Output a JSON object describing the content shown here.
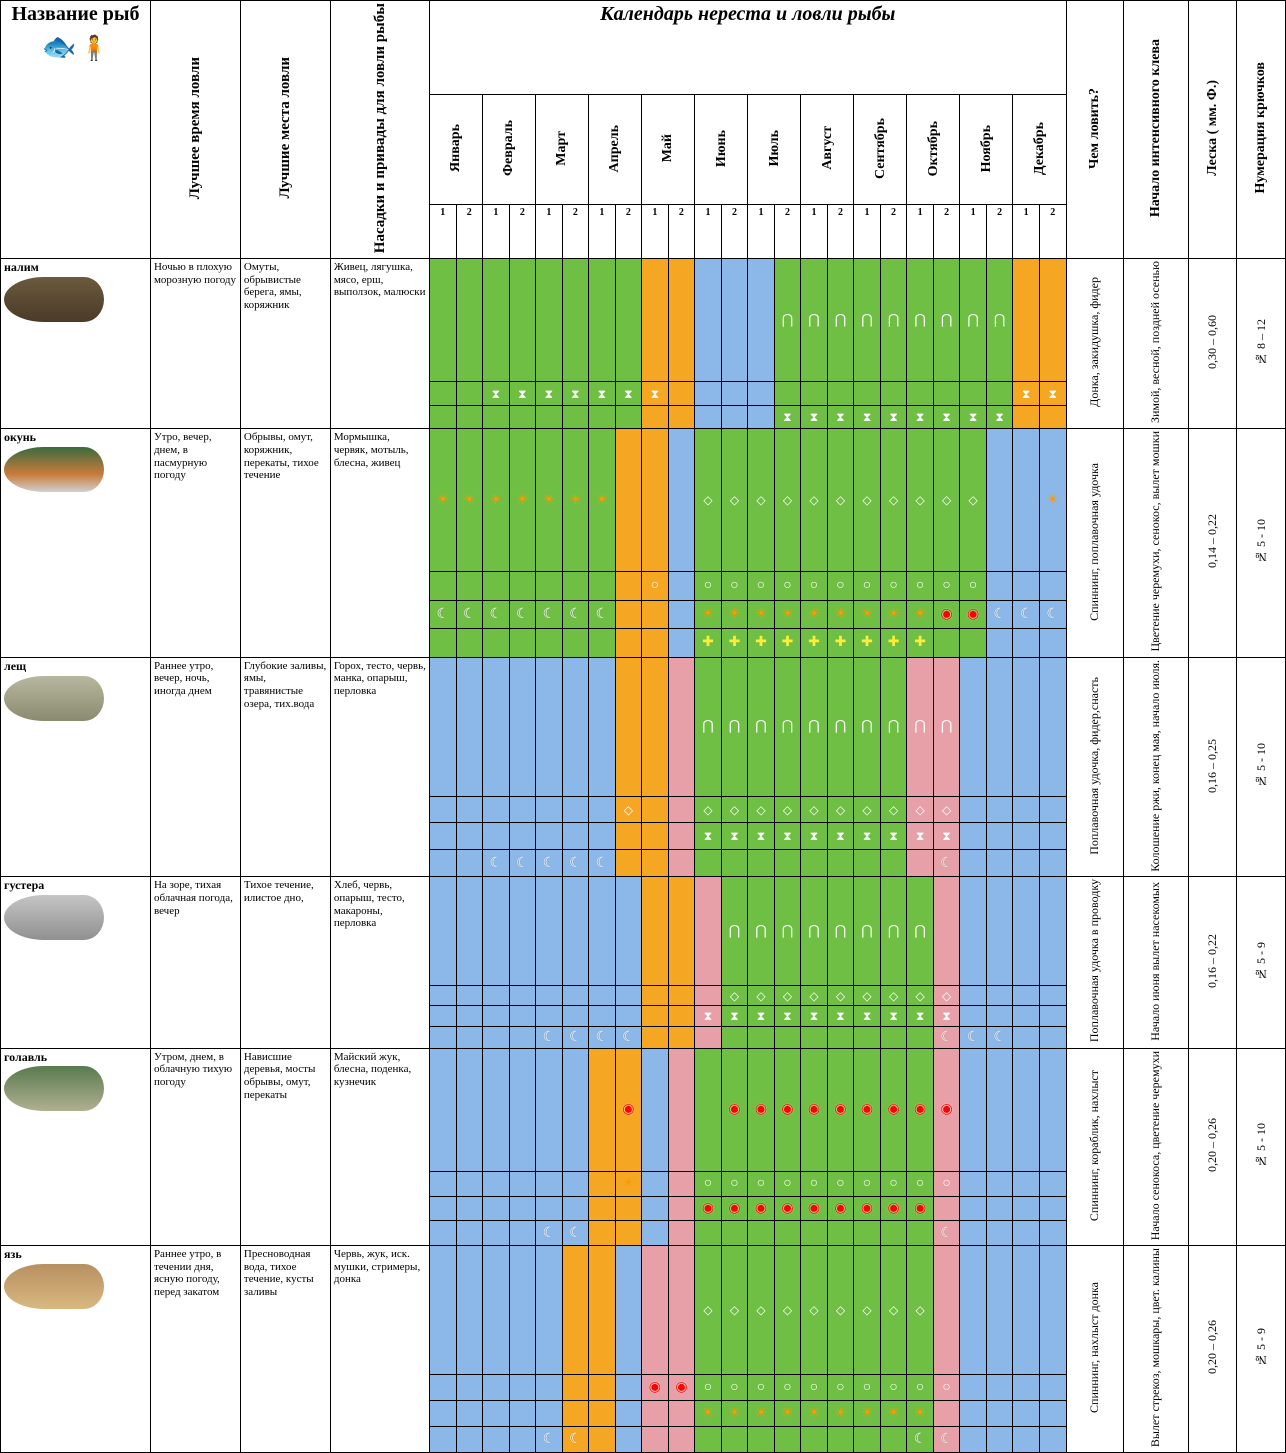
{
  "title_name": "Название рыб",
  "headers": {
    "best_time": "Лучшее время ловли",
    "best_place": "Лучшие места ловли",
    "bait": "Насадки и привады для ловли рыбы",
    "calendar": "Календарь нереста и ловли рыбы",
    "gear": "Чем ловить?",
    "intense": "Начало интенсивного клева",
    "line": "Леска ( мм. Ф.)",
    "hooks": "Нумерация крючков"
  },
  "months": [
    "Январь",
    "Февраль",
    "Март",
    "Апрель",
    "Май",
    "Июнь",
    "Июль",
    "Август",
    "Сентябрь",
    "Октябрь",
    "Ноябрь",
    "Декабрь"
  ],
  "half_labels": [
    "1",
    "2"
  ],
  "colors": {
    "green": "#6fbf44",
    "blue": "#8bb8e8",
    "orange": "#f5a623",
    "pink": "#e8a0a8",
    "white": "#ffffff"
  },
  "col_widths": {
    "name": 130,
    "best_time": 78,
    "best_place": 78,
    "bait": 86,
    "gear": 50,
    "intense": 56,
    "line": 42,
    "hooks": 42
  },
  "symbols": {
    "hourglass": "⧗",
    "moon": "☾",
    "sun": "☀",
    "diamond": "◇",
    "circle": "○",
    "tooth": "⋂",
    "cross": "✚",
    "redring": "◉"
  },
  "fish": [
    {
      "name": "налим",
      "fish_color": "linear-gradient(#6b5a3e,#4a3a28)",
      "best_time": "Ночью в плохую морозную погоду",
      "best_place": "Омуты, обрывистые берега, ямы, коряжник",
      "bait": "Живец, лягушка, мясо, ерш, выползок, малюски",
      "gear": "Донка, закидушка, фидер",
      "intense": "Зимой, весной, поздней осенью",
      "line": "0,30 – 0,60",
      "hooks": "№ 8 – 12",
      "calendar_bg": [
        "green",
        "green",
        "green",
        "green",
        "green",
        "green",
        "green",
        "green",
        "orange",
        "orange",
        "blue",
        "blue",
        "blue",
        "green",
        "green",
        "green",
        "green",
        "green",
        "green",
        "green",
        "green",
        "green",
        "orange",
        "orange"
      ],
      "calendar_rows": [
        [
          "",
          "",
          "",
          "",
          "",
          "",
          "",
          "",
          "",
          "",
          "",
          "",
          "",
          "tooth",
          "tooth",
          "tooth",
          "tooth",
          "tooth",
          "tooth",
          "tooth",
          "tooth",
          "tooth",
          "",
          ""
        ],
        [
          "",
          "",
          "hourglass",
          "hourglass",
          "hourglass",
          "hourglass",
          "hourglass",
          "hourglass",
          "hourglass",
          "",
          "",
          "",
          "",
          "",
          "",
          "",
          "",
          "",
          "",
          "",
          "",
          "",
          "hourglass",
          "hourglass"
        ],
        [
          "",
          "",
          "",
          "",
          "",
          "",
          "",
          "",
          "",
          "",
          "",
          "",
          "",
          "hourglass",
          "hourglass",
          "hourglass",
          "hourglass",
          "hourglass",
          "hourglass",
          "hourglass",
          "hourglass",
          "hourglass",
          "",
          ""
        ]
      ]
    },
    {
      "name": "окунь",
      "fish_color": "linear-gradient(#3a6b3e,#c97a3a 60%,#d0d0d0)",
      "best_time": "Утро, вечер, днем, в пасмурную погоду",
      "best_place": "Обрывы, омут, коряжник, перекаты, тихое течение",
      "bait": "Мормышка, червяк, мотыль, блесна, живец",
      "gear": "Спиннинг, поплавочная удочка",
      "intense": "Цветение черемухи, сенокос, вылет мошки",
      "line": "0,14 – 0,22",
      "hooks": "№ 5 - 10",
      "calendar_bg": [
        "green",
        "green",
        "green",
        "green",
        "green",
        "green",
        "green",
        "orange",
        "orange",
        "blue",
        "green",
        "green",
        "green",
        "green",
        "green",
        "green",
        "green",
        "green",
        "green",
        "green",
        "green",
        "blue",
        "blue",
        "blue"
      ],
      "calendar_rows": [
        [
          "sun",
          "sun",
          "sun",
          "sun",
          "sun",
          "sun",
          "sun",
          "",
          "",
          "",
          "diamond",
          "diamond",
          "diamond",
          "diamond",
          "diamond",
          "diamond",
          "diamond",
          "diamond",
          "diamond",
          "diamond",
          "diamond",
          "",
          "",
          "sun"
        ],
        [
          "",
          "",
          "",
          "",
          "",
          "",
          "",
          "",
          "circle",
          "",
          "circle",
          "circle",
          "circle",
          "circle",
          "circle",
          "circle",
          "circle",
          "circle",
          "circle",
          "circle",
          "circle",
          "",
          "",
          ""
        ],
        [
          "moon",
          "moon",
          "moon",
          "moon",
          "moon",
          "moon",
          "moon",
          "",
          "",
          "",
          "sun",
          "sun",
          "sun",
          "sun",
          "sun",
          "sun",
          "sun",
          "sun",
          "sun",
          "redring",
          "redring",
          "moon",
          "moon",
          "moon"
        ],
        [
          "",
          "",
          "",
          "",
          "",
          "",
          "",
          "",
          "",
          "",
          "cross",
          "cross",
          "cross",
          "cross",
          "cross",
          "cross",
          "cross",
          "cross",
          "cross",
          "",
          "",
          "",
          "",
          ""
        ]
      ]
    },
    {
      "name": "лещ",
      "fish_color": "linear-gradient(#b8b8a0,#8a8a70)",
      "best_time": "Раннее утро, вечер, ночь, иногда днем",
      "best_place": "Глубокие заливы, ямы, травянистые озера, тих.вода",
      "bait": "Горох, тесто, червь, манка, опарыш, перловка",
      "gear": "Поплавочная удочка, фидер,снасть",
      "intense": "Колошение ржи, конец мая, начало июля.",
      "line": "0,16 – 0,25",
      "hooks": "№ 5 - 10",
      "calendar_bg": [
        "blue",
        "blue",
        "blue",
        "blue",
        "blue",
        "blue",
        "blue",
        "orange",
        "orange",
        "pink",
        "green",
        "green",
        "green",
        "green",
        "green",
        "green",
        "green",
        "green",
        "pink",
        "pink",
        "blue",
        "blue",
        "blue",
        "blue"
      ],
      "calendar_rows": [
        [
          "",
          "",
          "",
          "",
          "",
          "",
          "",
          "",
          "",
          "",
          "tooth",
          "tooth",
          "tooth",
          "tooth",
          "tooth",
          "tooth",
          "tooth",
          "tooth",
          "tooth",
          "tooth",
          "",
          "",
          "",
          ""
        ],
        [
          "",
          "",
          "",
          "",
          "",
          "",
          "",
          "diamond",
          "",
          "",
          "diamond",
          "diamond",
          "diamond",
          "diamond",
          "diamond",
          "diamond",
          "diamond",
          "diamond",
          "diamond",
          "diamond",
          "",
          "",
          "",
          ""
        ],
        [
          "",
          "",
          "",
          "",
          "",
          "",
          "",
          "",
          "",
          "",
          "hourglass",
          "hourglass",
          "hourglass",
          "hourglass",
          "hourglass",
          "hourglass",
          "hourglass",
          "hourglass",
          "hourglass",
          "hourglass",
          "",
          "",
          "",
          ""
        ],
        [
          "",
          "",
          "moon",
          "moon",
          "moon",
          "moon",
          "moon",
          "",
          "",
          "",
          "",
          "",
          "",
          "",
          "",
          "",
          "",
          "",
          "",
          "moon",
          "",
          "",
          "",
          ""
        ]
      ]
    },
    {
      "name": "густера",
      "fish_color": "linear-gradient(#c5c5c5,#909090)",
      "best_time": "На зоре, тихая облачная погода, вечер",
      "best_place": "Тихое течение, илистое дно,",
      "bait": "Хлеб, червь, опарыш, тесто, макароны, перловка",
      "gear": "Поплавочная удочка в проводку",
      "intense": "Начало июня вылет насекомых",
      "line": "0,16 – 0,22",
      "hooks": "№ 5 - 9",
      "calendar_bg": [
        "blue",
        "blue",
        "blue",
        "blue",
        "blue",
        "blue",
        "blue",
        "blue",
        "orange",
        "orange",
        "pink",
        "green",
        "green",
        "green",
        "green",
        "green",
        "green",
        "green",
        "green",
        "pink",
        "blue",
        "blue",
        "blue",
        "blue"
      ],
      "calendar_rows": [
        [
          "",
          "",
          "",
          "",
          "",
          "",
          "",
          "",
          "",
          "",
          "",
          "tooth",
          "tooth",
          "tooth",
          "tooth",
          "tooth",
          "tooth",
          "tooth",
          "tooth",
          "",
          "",
          "",
          "",
          ""
        ],
        [
          "",
          "",
          "",
          "",
          "",
          "",
          "",
          "",
          "",
          "",
          "",
          "diamond",
          "diamond",
          "diamond",
          "diamond",
          "diamond",
          "diamond",
          "diamond",
          "diamond",
          "diamond",
          "",
          "",
          "",
          ""
        ],
        [
          "",
          "",
          "",
          "",
          "",
          "",
          "",
          "",
          "",
          "",
          "hourglass",
          "hourglass",
          "hourglass",
          "hourglass",
          "hourglass",
          "hourglass",
          "hourglass",
          "hourglass",
          "hourglass",
          "hourglass",
          "",
          "",
          "",
          ""
        ],
        [
          "",
          "",
          "",
          "",
          "moon",
          "moon",
          "moon",
          "moon",
          "",
          "",
          "",
          "",
          "",
          "",
          "",
          "",
          "",
          "",
          "",
          "moon",
          "moon",
          "moon",
          "",
          ""
        ]
      ]
    },
    {
      "name": "голавль",
      "fish_color": "linear-gradient(#5a7a4e,#b0b090)",
      "best_time": "Утром, днем, в облачную тихую погоду",
      "best_place": "Нависшие деревья, мосты обрывы, омут, перекаты",
      "bait": "Майский жук, блесна, поденка, кузнечик",
      "gear": "Спиннинг, кораблик, нахлыст",
      "intense": "Начало сенокоса, цветение черемухи",
      "line": "0,20 – 0,26",
      "hooks": "№ 5 - 10",
      "calendar_bg": [
        "blue",
        "blue",
        "blue",
        "blue",
        "blue",
        "blue",
        "orange",
        "orange",
        "blue",
        "pink",
        "green",
        "green",
        "green",
        "green",
        "green",
        "green",
        "green",
        "green",
        "green",
        "pink",
        "blue",
        "blue",
        "blue",
        "blue"
      ],
      "calendar_rows": [
        [
          "",
          "",
          "",
          "",
          "",
          "",
          "",
          "redring",
          "",
          "",
          "",
          "redring",
          "redring",
          "redring",
          "redring",
          "redring",
          "redring",
          "redring",
          "redring",
          "redring",
          "",
          "",
          "",
          ""
        ],
        [
          "",
          "",
          "",
          "",
          "",
          "",
          "",
          "sun",
          "",
          "",
          "circle",
          "circle",
          "circle",
          "circle",
          "circle",
          "circle",
          "circle",
          "circle",
          "circle",
          "circle",
          "",
          "",
          "",
          ""
        ],
        [
          "",
          "",
          "",
          "",
          "",
          "",
          "",
          "",
          "",
          "",
          "redring",
          "redring",
          "redring",
          "redring",
          "redring",
          "redring",
          "redring",
          "redring",
          "redring",
          "",
          "",
          "",
          "",
          ""
        ],
        [
          "",
          "",
          "",
          "",
          "moon",
          "moon",
          "",
          "",
          "",
          "",
          "",
          "",
          "",
          "",
          "",
          "",
          "",
          "",
          "",
          "moon",
          "",
          "",
          "",
          ""
        ]
      ]
    },
    {
      "name": "язь",
      "fish_color": "linear-gradient(#b89060,#d8b880)",
      "best_time": "Раннее утро, в течении дня, ясную погоду, перед закатом",
      "best_place": "Пресноводная вода, тихое течение, кусты заливы",
      "bait": "Червь, жук, иск. мушки, стримеры, донка",
      "gear": "Спиннинг, нахлыст донка",
      "intense": "Вылет стрекоз, мошкары, цвет. калины",
      "line": "0,20 – 0,26",
      "hooks": "№ 5 - 9",
      "calendar_bg": [
        "blue",
        "blue",
        "blue",
        "blue",
        "blue",
        "orange",
        "orange",
        "blue",
        "pink",
        "pink",
        "green",
        "green",
        "green",
        "green",
        "green",
        "green",
        "green",
        "green",
        "green",
        "pink",
        "blue",
        "blue",
        "blue",
        "blue"
      ],
      "calendar_rows": [
        [
          "",
          "",
          "",
          "",
          "",
          "",
          "",
          "",
          "",
          "",
          "diamond",
          "diamond",
          "diamond",
          "diamond",
          "diamond",
          "diamond",
          "diamond",
          "diamond",
          "diamond",
          "",
          "",
          "",
          "",
          ""
        ],
        [
          "",
          "",
          "",
          "",
          "",
          "",
          "",
          "",
          "redring",
          "redring",
          "circle",
          "circle",
          "circle",
          "circle",
          "circle",
          "circle",
          "circle",
          "circle",
          "circle",
          "circle",
          "",
          "",
          "",
          ""
        ],
        [
          "",
          "",
          "",
          "",
          "",
          "",
          "",
          "",
          "",
          "",
          "sun",
          "sun",
          "sun",
          "sun",
          "sun",
          "sun",
          "sun",
          "sun",
          "sun",
          "",
          "",
          "",
          "",
          ""
        ],
        [
          "",
          "",
          "",
          "",
          "moon",
          "moon",
          "",
          "",
          "",
          "",
          "",
          "",
          "",
          "",
          "",
          "",
          "",
          "",
          "moon",
          "moon",
          "",
          "",
          "",
          ""
        ]
      ]
    }
  ]
}
